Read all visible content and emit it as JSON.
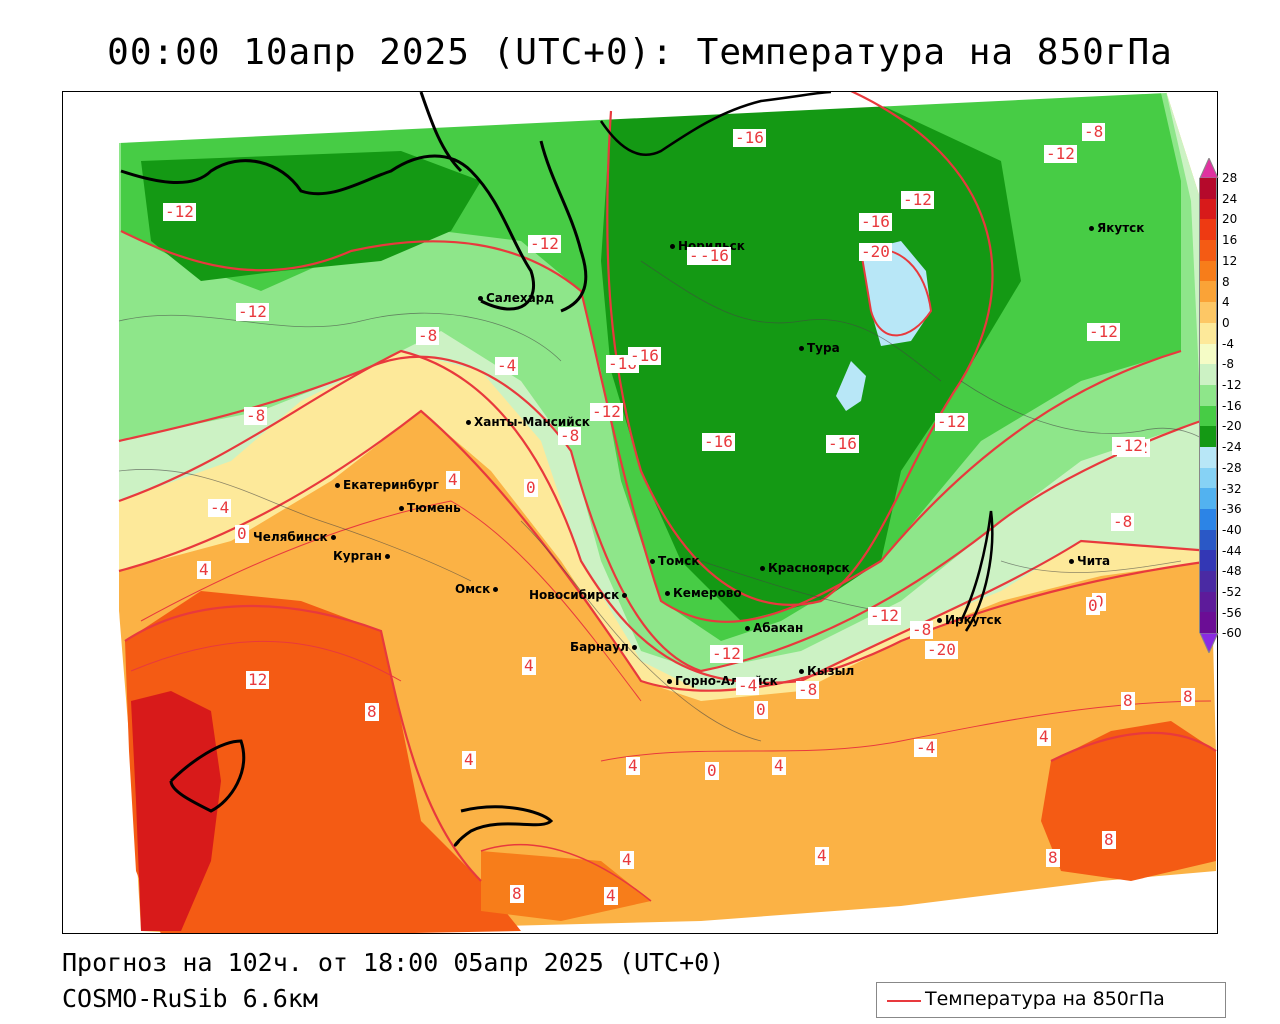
{
  "header": {
    "title": "00:00 10апр 2025 (UTC+0): Температура на 850гПа"
  },
  "footer": {
    "forecast": "Прогноз на 102ч. от 18:00 05апр 2025 (UTC+0)",
    "model": "COSMO-RuSib 6.6км"
  },
  "legend": {
    "label": "Температура на 850гПа",
    "line_color": "#e8393d"
  },
  "colorbar": {
    "labels": [
      "28",
      "24",
      "20",
      "16",
      "12",
      "8",
      "4",
      "0",
      "-4",
      "-8",
      "-12",
      "-16",
      "-20",
      "-24",
      "-28",
      "-32",
      "-36",
      "-40",
      "-44",
      "-48",
      "-52",
      "-56",
      "-60"
    ],
    "colors": [
      "#b5092b",
      "#d81a1a",
      "#ee3a12",
      "#f45b14",
      "#f77d1a",
      "#faa337",
      "#fdc765",
      "#fde99a",
      "#f5fcc6",
      "#ccf2c4",
      "#8ee68a",
      "#47cc45",
      "#149914",
      "#b8e7f7",
      "#86d2f5",
      "#52b2f0",
      "#2c84e6",
      "#2a58c6",
      "#3337b5",
      "#4a2aa3",
      "#5d1b9a",
      "#6b0d95"
    ],
    "top_arrow_color": "#e032a0",
    "bottom_arrow_color": "#8a2be2"
  },
  "cities": [
    {
      "name": "Норильск"
    },
    {
      "name": "Салехард"
    },
    {
      "name": "Тура"
    },
    {
      "name": "Якутск"
    },
    {
      "name": "Ханты-Мансийск"
    },
    {
      "name": "Екатеринбург"
    },
    {
      "name": "Тюмень"
    },
    {
      "name": "Челябинск"
    },
    {
      "name": "Курган"
    },
    {
      "name": "Омск"
    },
    {
      "name": "Новосибирск"
    },
    {
      "name": "Томск"
    },
    {
      "name": "Кемерово"
    },
    {
      "name": "Красноярск"
    },
    {
      "name": "Абакан"
    },
    {
      "name": "Барнаул"
    },
    {
      "name": "Горно-Алтайск"
    },
    {
      "name": "Кызыл"
    },
    {
      "name": "Иркутск"
    },
    {
      "name": "Чита"
    }
  ],
  "contour_labels": [
    "-16",
    "-12",
    "-12",
    "-16",
    "-8",
    "-12",
    "-12",
    "-16",
    "-20",
    "-12",
    "-12",
    "-8",
    "-4",
    "-16",
    "-12",
    "-8",
    "-16",
    "-16",
    "-12",
    "-12",
    "-8",
    "-4",
    "0",
    "4",
    "0",
    "-4",
    "-8",
    "0",
    "4",
    "12",
    "8",
    "4",
    "4",
    "0",
    "4",
    "-12",
    "-12",
    "-8",
    "-20",
    "-4",
    "-8",
    "0",
    "4",
    "0",
    "4",
    "8",
    "8",
    "4",
    "8",
    "4",
    "8",
    "4",
    "8",
    "-16",
    "-16",
    "-12"
  ]
}
